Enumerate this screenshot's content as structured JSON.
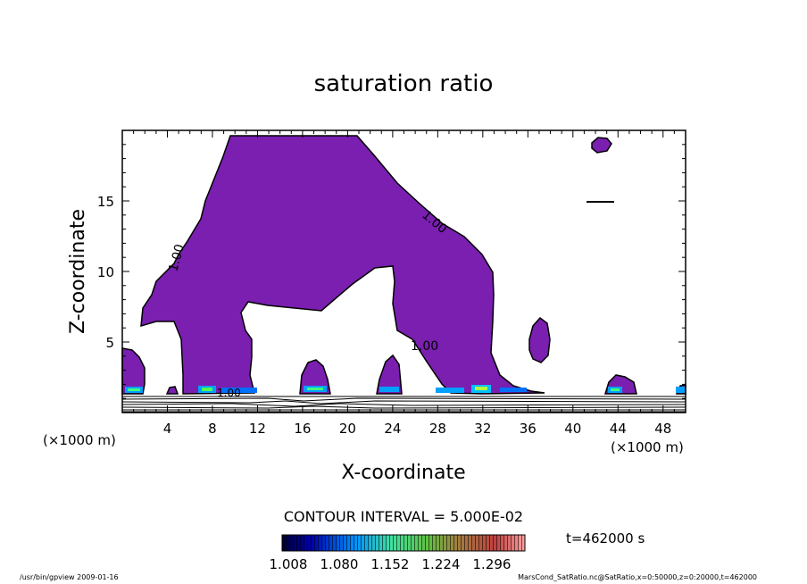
{
  "chart_data": {
    "type": "contour",
    "title": "saturation ratio",
    "xlabel": "X-coordinate",
    "ylabel": "Z-coordinate",
    "x_unit": "(×1000 m)",
    "z_unit": "(×1000 m)",
    "xlim": [
      0,
      50
    ],
    "ylim": [
      0,
      20
    ],
    "x_ticks": [
      "4",
      "8",
      "12",
      "16",
      "20",
      "24",
      "28",
      "32",
      "36",
      "40",
      "44",
      "48"
    ],
    "y_ticks": [
      "5",
      "10",
      "15"
    ],
    "contour_labels": [
      "1.00",
      "1.00",
      "1.00",
      "1.00"
    ],
    "contour_interval": "CONTOUR INTERVAL = 5.000E-02",
    "colorbar_ticks": [
      "1.008",
      "1.080",
      "1.152",
      "1.224",
      "1.296"
    ],
    "time_label": "t=462000 s",
    "fill_color": "#7a1fb0"
  },
  "footer": {
    "left": "/usr/bin/gpview  2009-01-16",
    "right": "MarsCond_SatRatio.nc@SatRatio,x=0:50000,z=0:20000,t=462000"
  }
}
